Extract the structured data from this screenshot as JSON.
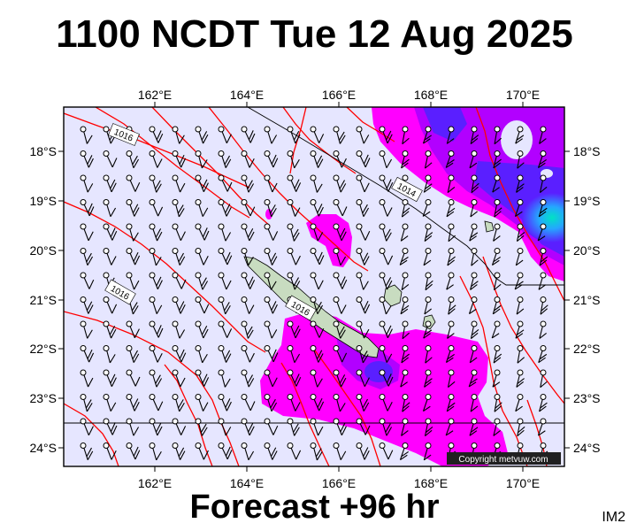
{
  "header": {
    "title": "1100 NCDT Tue 12 Aug 2025"
  },
  "footer": {
    "forecast_label": "Forecast +96 hr"
  },
  "corner_label": "IM2",
  "copyright": "Copyright metvuw.com",
  "map": {
    "lon_range": [
      160.0,
      170.9
    ],
    "lat_range": [
      -24.4,
      -17.1
    ],
    "lon_ticks": [
      "162°E",
      "164°E",
      "166°E",
      "168°E",
      "170°E"
    ],
    "lat_ticks": [
      "18°S",
      "19°S",
      "20°S",
      "21°S",
      "22°S",
      "23°S",
      "24°S"
    ],
    "colors": {
      "background": "#e6e6ff",
      "isobar_red": "#ff0000",
      "isobar_black": "#000000",
      "rain_light": "#ff00ff",
      "rain_mid": "#b200ff",
      "rain_heavy": "#5a1fff",
      "rain_core": "#00d7c8",
      "land": "#c8dcc0"
    },
    "isobar_labels": [
      "1016",
      "1014",
      "1016",
      "1016"
    ],
    "wind_barb_note": "wind barbs on regular grid"
  }
}
